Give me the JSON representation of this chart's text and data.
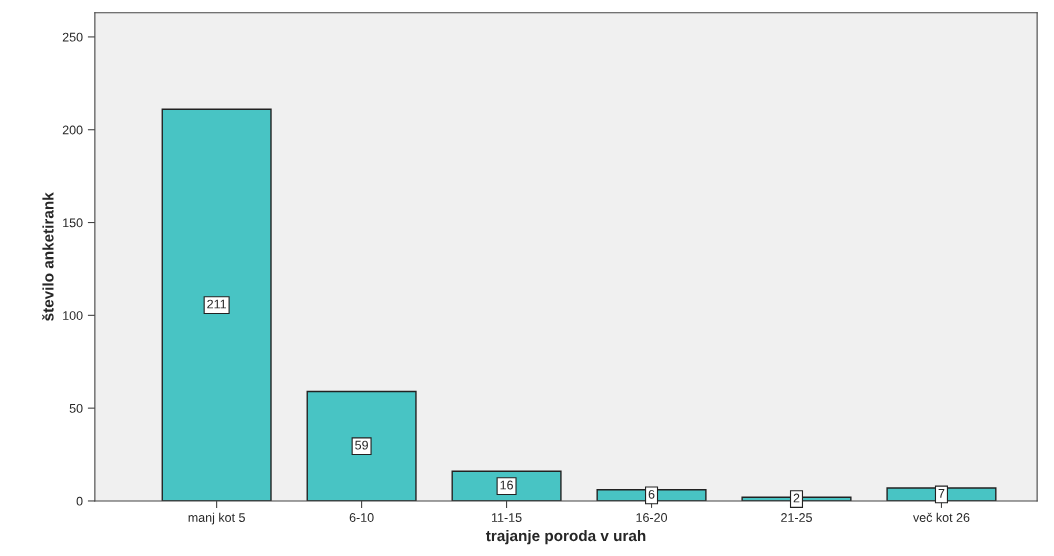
{
  "chart_data": {
    "type": "bar",
    "xlabel": "trajanje poroda v urah",
    "ylabel": "število anketirank",
    "categories": [
      "manj kot 5",
      "6-10",
      "11-15",
      "16-20",
      "21-25",
      "več kot 26"
    ],
    "values": [
      211,
      59,
      16,
      6,
      2,
      7
    ],
    "color": "#48c4c4",
    "ylim": [
      0,
      263
    ],
    "yticks": [
      0,
      50,
      100,
      150,
      200,
      250
    ],
    "data_labels": true,
    "grid": false
  }
}
